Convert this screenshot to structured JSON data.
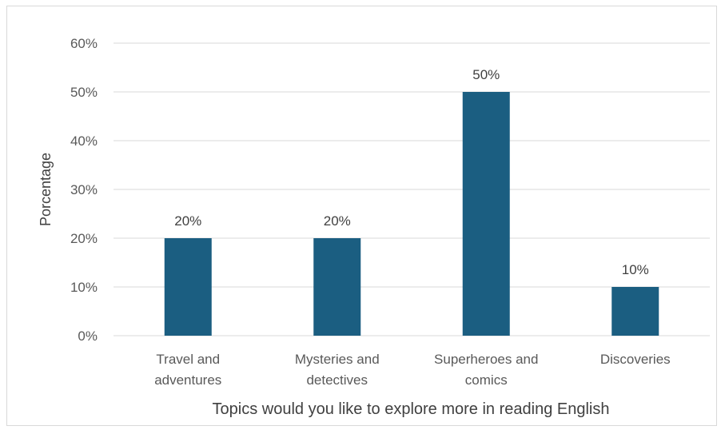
{
  "chart_data": {
    "type": "bar",
    "categories": [
      [
        "Travel and",
        "adventures"
      ],
      [
        "Mysteries and",
        "detectives"
      ],
      [
        "Superheroes and",
        "comics"
      ],
      [
        "Discoveries"
      ]
    ],
    "values": [
      20,
      20,
      50,
      10
    ],
    "data_labels": [
      "20%",
      "20%",
      "50%",
      "10%"
    ],
    "yticks": [
      0,
      10,
      20,
      30,
      40,
      50,
      60
    ],
    "ytick_labels": [
      "0%",
      "10%",
      "20%",
      "30%",
      "40%",
      "50%",
      "60%"
    ],
    "ylim": [
      0,
      60
    ],
    "xlabel": "Topics would you like to explore more in reading English",
    "ylabel": "Porcentage",
    "title": "",
    "grid": true,
    "legend": "none",
    "bar_color": "#1b5e81",
    "grid_color": "#d9d9d9"
  }
}
